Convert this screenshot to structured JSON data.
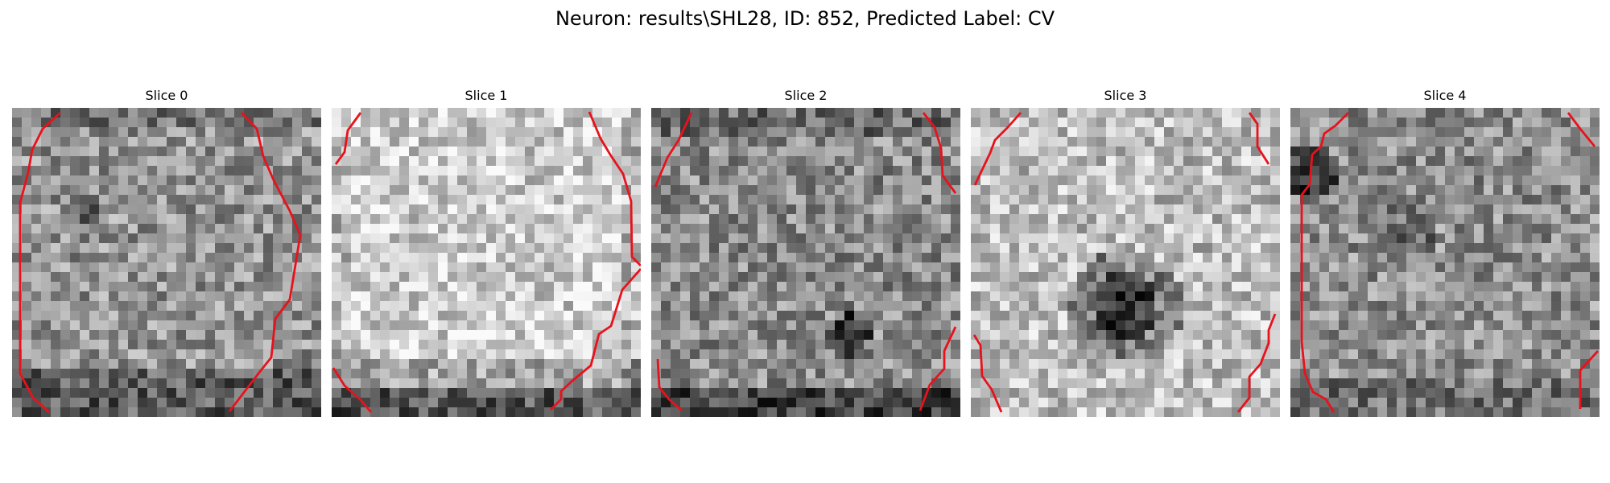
{
  "figure": {
    "title": "Neuron: results\\SHL28, ID: 852, Predicted Label: CV"
  },
  "panels": [
    {
      "title": "Slice 0"
    },
    {
      "title": "Slice 1"
    },
    {
      "title": "Slice 2"
    },
    {
      "title": "Slice 3"
    },
    {
      "title": "Slice 4"
    }
  ],
  "colors": {
    "contour": "#e8121c",
    "background": "#ffffff"
  }
}
